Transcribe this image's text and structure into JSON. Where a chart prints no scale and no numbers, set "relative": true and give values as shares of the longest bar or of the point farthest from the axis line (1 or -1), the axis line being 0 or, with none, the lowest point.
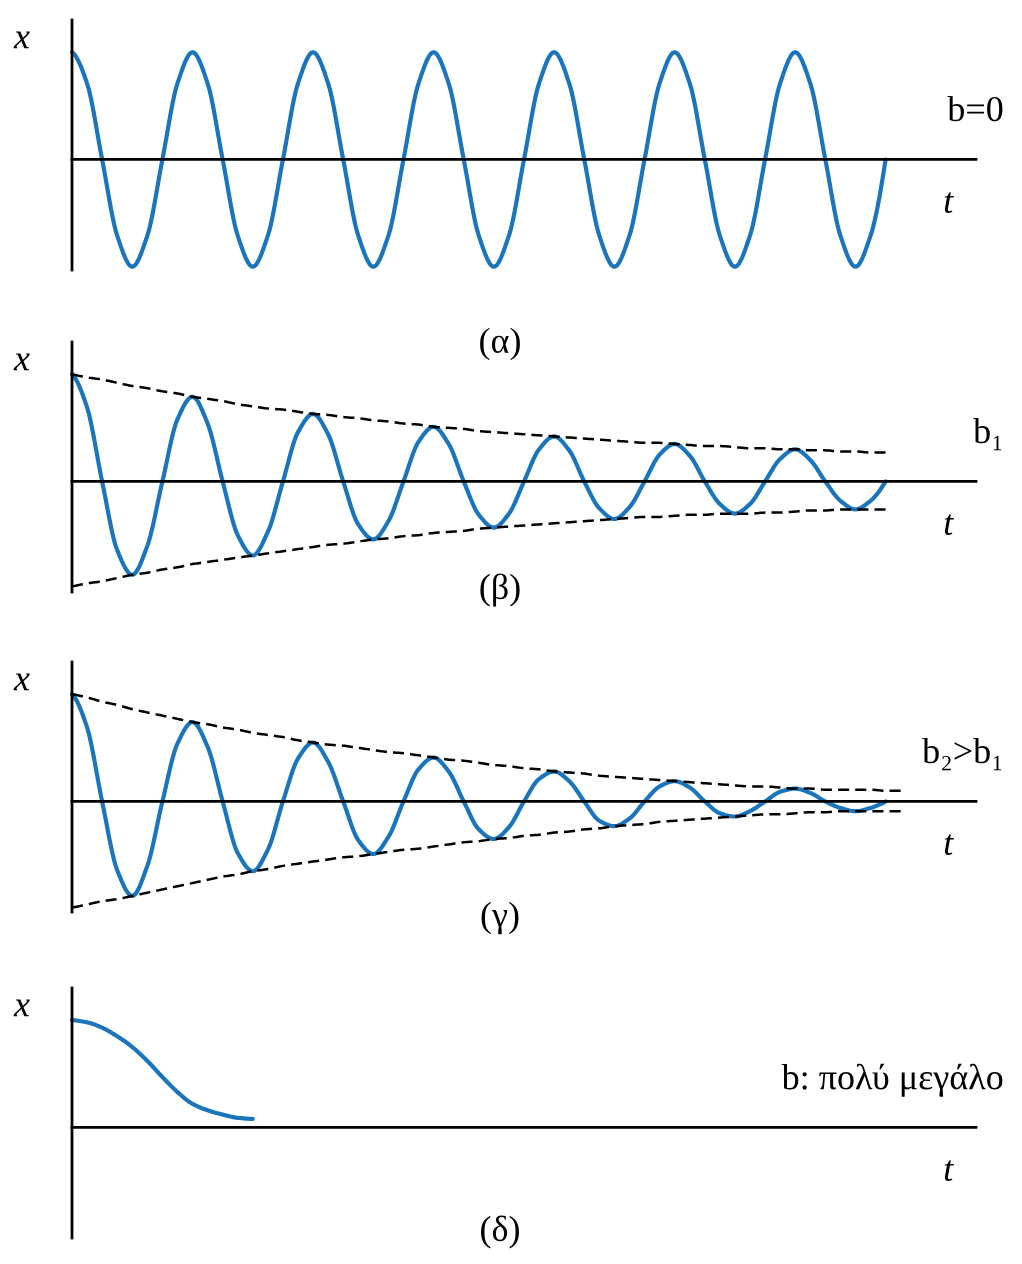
{
  "chart_data": [
    {
      "type": "line",
      "relative": true,
      "title": "(α)",
      "xlabel": "t",
      "ylabel": "x",
      "annotations": [
        "b=0"
      ],
      "categories": [
        null,
        null,
        null,
        null,
        null,
        null,
        null,
        null,
        null,
        null,
        null,
        null,
        null,
        null,
        null,
        null,
        null,
        null,
        null,
        null,
        null,
        null,
        null,
        null,
        null,
        null,
        null,
        null,
        null,
        null,
        null,
        null,
        null,
        null,
        null,
        null,
        null,
        null,
        null,
        null,
        null,
        null,
        null,
        null,
        null,
        null,
        null,
        null,
        null,
        null,
        null,
        null,
        null,
        null,
        null,
        null,
        null,
        null,
        null,
        null,
        null
      ],
      "series": [
        {
          "color": "#1b75bc",
          "values": [
            1,
            0.71,
            0,
            -0.71,
            -1,
            -0.71,
            0,
            0.71,
            1,
            0.71,
            0,
            -0.71,
            -1,
            -0.71,
            0,
            0.71,
            1,
            0.71,
            0,
            -0.71,
            -1,
            -0.71,
            0,
            0.71,
            1,
            0.71,
            0,
            -0.71,
            -1,
            -0.71,
            0,
            0.71,
            1,
            0.71,
            0,
            -0.71,
            -1,
            -0.71,
            0,
            0.71,
            1,
            0.71,
            0,
            -0.71,
            -1,
            -0.71,
            0,
            0.71,
            1,
            0.71,
            0,
            -0.71,
            -1,
            -0.71,
            0,
            null,
            null,
            null,
            null,
            null,
            null
          ]
        }
      ]
    },
    {
      "type": "line",
      "relative": true,
      "title": "(β)",
      "xlabel": "t",
      "ylabel": "x",
      "annotations": [
        "b₁"
      ],
      "categories": [
        null,
        null,
        null,
        null,
        null,
        null,
        null,
        null,
        null,
        null,
        null,
        null,
        null,
        null,
        null,
        null,
        null,
        null,
        null,
        null,
        null,
        null,
        null,
        null,
        null,
        null,
        null,
        null,
        null,
        null,
        null,
        null,
        null,
        null,
        null,
        null,
        null,
        null,
        null,
        null,
        null,
        null,
        null,
        null,
        null,
        null,
        null,
        null,
        null,
        null,
        null,
        null,
        null,
        null,
        null,
        null,
        null,
        null,
        null,
        null,
        null
      ],
      "series": [
        {
          "color": "#1b75bc",
          "values": [
            1.0,
            0.69,
            0,
            -0.64,
            -0.87,
            -0.6,
            0,
            0.58,
            0.79,
            0.54,
            0,
            -0.5,
            -0.69,
            -0.47,
            0,
            0.46,
            0.63,
            0.44,
            0,
            -0.4,
            -0.54,
            -0.37,
            0,
            0.37,
            0.51,
            0.35,
            0,
            -0.31,
            -0.43,
            -0.3,
            0,
            0.3,
            0.42,
            0.29,
            0,
            -0.25,
            -0.35,
            -0.24,
            0,
            0.25,
            0.35,
            0.24,
            0,
            -0.21,
            -0.3,
            -0.21,
            0,
            0.21,
            0.3,
            0.2,
            0,
            -0.18,
            -0.26,
            -0.18,
            0,
            null,
            null,
            null,
            null,
            null,
            null
          ]
        },
        {
          "color": "#000000",
          "line_style": "dashed",
          "values": [
            1.0,
            0.97,
            0.95,
            0.92,
            0.89,
            0.87,
            0.84,
            0.82,
            0.79,
            0.77,
            0.75,
            0.72,
            0.7,
            0.68,
            0.67,
            0.65,
            0.63,
            0.62,
            0.6,
            0.59,
            0.57,
            0.56,
            0.54,
            0.53,
            0.51,
            0.5,
            0.49,
            0.47,
            0.46,
            0.45,
            0.44,
            0.43,
            0.42,
            0.41,
            0.4,
            0.39,
            0.38,
            0.37,
            0.36,
            0.36,
            0.35,
            0.34,
            0.33,
            0.33,
            0.32,
            0.31,
            0.31,
            0.3,
            0.3,
            0.29,
            0.29,
            0.28,
            0.28,
            0.27,
            0.27,
            null,
            null,
            null,
            null,
            null,
            null
          ]
        },
        {
          "color": "#000000",
          "line_style": "dashed",
          "values": [
            -0.98,
            -0.95,
            -0.93,
            -0.9,
            -0.87,
            -0.85,
            -0.82,
            -0.8,
            -0.77,
            -0.75,
            -0.73,
            -0.71,
            -0.69,
            -0.67,
            -0.65,
            -0.63,
            -0.61,
            -0.59,
            -0.58,
            -0.56,
            -0.54,
            -0.53,
            -0.51,
            -0.5,
            -0.48,
            -0.47,
            -0.46,
            -0.44,
            -0.43,
            -0.42,
            -0.41,
            -0.4,
            -0.39,
            -0.38,
            -0.37,
            -0.36,
            -0.35,
            -0.34,
            -0.33,
            -0.33,
            -0.32,
            -0.31,
            -0.31,
            -0.3,
            -0.3,
            -0.3,
            -0.29,
            -0.29,
            -0.28,
            -0.27,
            -0.27,
            -0.26,
            -0.26,
            -0.26,
            -0.26,
            null,
            null,
            null,
            null,
            null,
            null
          ]
        }
      ]
    },
    {
      "type": "line",
      "relative": true,
      "title": "(γ)",
      "xlabel": "t",
      "ylabel": "x",
      "annotations": [
        "b₂>b₁"
      ],
      "categories": [
        null,
        null,
        null,
        null,
        null,
        null,
        null,
        null,
        null,
        null,
        null,
        null,
        null,
        null,
        null,
        null,
        null,
        null,
        null,
        null,
        null,
        null,
        null,
        null,
        null,
        null,
        null,
        null,
        null,
        null,
        null,
        null,
        null,
        null,
        null,
        null,
        null,
        null,
        null,
        null,
        null,
        null,
        null,
        null,
        null,
        null,
        null,
        null,
        null,
        null,
        null,
        null,
        null,
        null,
        null,
        null,
        null,
        null,
        null,
        null,
        null
      ],
      "series": [
        {
          "color": "#1b75bc",
          "values": [
            1.0,
            0.69,
            0,
            -0.64,
            -0.88,
            -0.6,
            0,
            0.54,
            0.74,
            0.51,
            0,
            -0.48,
            -0.65,
            -0.45,
            0,
            0.4,
            0.55,
            0.37,
            0,
            -0.36,
            -0.49,
            -0.33,
            0,
            0.3,
            0.41,
            0.28,
            0,
            -0.26,
            -0.35,
            -0.24,
            0,
            0.21,
            0.28,
            0.19,
            0,
            -0.18,
            -0.23,
            -0.16,
            0,
            0.14,
            0.19,
            0.13,
            0,
            -0.11,
            -0.14,
            -0.09,
            0,
            0.09,
            0.12,
            0.08,
            0,
            -0.06,
            -0.09,
            -0.06,
            0,
            null,
            null,
            null,
            null,
            null,
            null
          ]
        },
        {
          "color": "#000000",
          "line_style": "dashed",
          "values": [
            1.0,
            0.97,
            0.93,
            0.9,
            0.86,
            0.83,
            0.8,
            0.77,
            0.74,
            0.72,
            0.69,
            0.67,
            0.64,
            0.62,
            0.6,
            0.57,
            0.55,
            0.53,
            0.52,
            0.5,
            0.48,
            0.46,
            0.45,
            0.43,
            0.41,
            0.39,
            0.38,
            0.36,
            0.34,
            0.33,
            0.31,
            0.3,
            0.28,
            0.27,
            0.26,
            0.24,
            0.23,
            0.22,
            0.21,
            0.2,
            0.19,
            0.18,
            0.17,
            0.16,
            0.15,
            0.14,
            0.14,
            0.13,
            0.12,
            0.12,
            0.11,
            0.11,
            0.11,
            0.11,
            0.1,
            0.1,
            null,
            null,
            null,
            null,
            null
          ]
        },
        {
          "color": "#000000",
          "line_style": "dashed",
          "values": [
            -0.99,
            -0.96,
            -0.93,
            -0.91,
            -0.88,
            -0.85,
            -0.82,
            -0.79,
            -0.76,
            -0.73,
            -0.7,
            -0.68,
            -0.65,
            -0.63,
            -0.6,
            -0.58,
            -0.56,
            -0.54,
            -0.52,
            -0.51,
            -0.49,
            -0.47,
            -0.45,
            -0.44,
            -0.42,
            -0.4,
            -0.38,
            -0.37,
            -0.35,
            -0.34,
            -0.32,
            -0.31,
            -0.29,
            -0.28,
            -0.26,
            -0.25,
            -0.23,
            -0.22,
            -0.21,
            -0.19,
            -0.18,
            -0.17,
            -0.16,
            -0.15,
            -0.14,
            -0.13,
            -0.12,
            -0.12,
            -0.11,
            -0.1,
            -0.1,
            -0.09,
            -0.09,
            -0.09,
            -0.09,
            -0.09,
            null,
            null,
            null,
            null,
            null
          ]
        }
      ]
    },
    {
      "type": "line",
      "relative": true,
      "title": "(δ)",
      "xlabel": "t",
      "ylabel": "x",
      "annotations": [
        "b: πολύ μεγάλο"
      ],
      "categories": [
        null,
        null,
        null,
        null,
        null,
        null,
        null,
        null,
        null,
        null,
        null,
        null,
        null,
        null,
        null,
        null,
        null,
        null,
        null,
        null,
        null,
        null,
        null,
        null,
        null,
        null,
        null,
        null,
        null,
        null,
        null,
        null,
        null,
        null,
        null,
        null,
        null,
        null,
        null,
        null,
        null,
        null,
        null,
        null,
        null,
        null,
        null,
        null,
        null,
        null,
        null,
        null,
        null,
        null,
        null,
        null,
        null,
        null,
        null,
        null,
        null
      ],
      "series": [
        {
          "color": "#1b75bc",
          "values": [
            1.0,
            0.98,
            0.93,
            0.85,
            0.75,
            0.62,
            0.47,
            0.33,
            0.22,
            0.16,
            0.12,
            0.09,
            0.08,
            null,
            null,
            null,
            null,
            null,
            null,
            null,
            null,
            null,
            null,
            null,
            null,
            null,
            null,
            null,
            null,
            null,
            null,
            null,
            null,
            null,
            null,
            null,
            null,
            null,
            null,
            null,
            null,
            null,
            null,
            null,
            null,
            null,
            null,
            null,
            null,
            null,
            null,
            null,
            null,
            null,
            null,
            null,
            null,
            null,
            null,
            null,
            null
          ]
        }
      ]
    }
  ]
}
